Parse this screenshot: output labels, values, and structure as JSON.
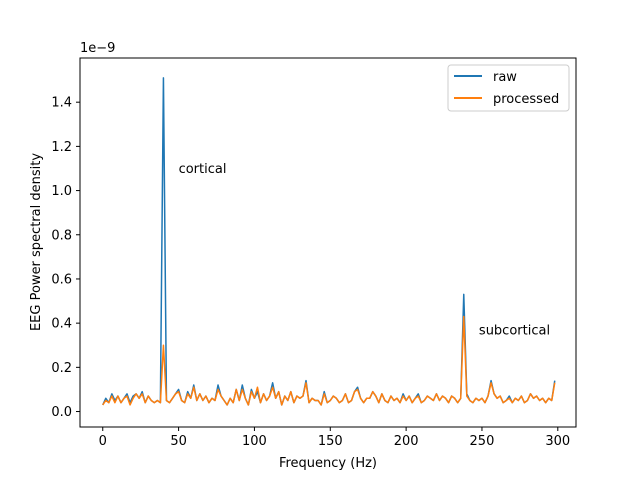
{
  "chart_data": {
    "type": "line",
    "title": "",
    "xlabel": "Frequency (Hz)",
    "ylabel": "EEG Power spectral density",
    "scale_label": "1e−9",
    "xlim": [
      -15,
      312
    ],
    "ylim": [
      -0.07,
      1.6
    ],
    "xticks": [
      0,
      50,
      100,
      150,
      200,
      250,
      300
    ],
    "yticks": [
      0.0,
      0.2,
      0.4,
      0.6,
      0.8,
      1.0,
      1.2,
      1.4
    ],
    "ytick_labels": [
      "0.0",
      "0.2",
      "0.4",
      "0.6",
      "0.8",
      "1.0",
      "1.2",
      "1.4"
    ],
    "grid": false,
    "legend_position": "top-right",
    "x": [
      0,
      2,
      4,
      6,
      8,
      10,
      12,
      14,
      16,
      18,
      20,
      22,
      24,
      26,
      28,
      30,
      32,
      34,
      36,
      38,
      40,
      42,
      44,
      46,
      48,
      50,
      52,
      54,
      56,
      58,
      60,
      62,
      64,
      66,
      68,
      70,
      72,
      74,
      76,
      78,
      80,
      82,
      84,
      86,
      88,
      90,
      92,
      94,
      96,
      98,
      100,
      102,
      104,
      106,
      108,
      110,
      112,
      114,
      116,
      118,
      120,
      122,
      124,
      126,
      128,
      130,
      132,
      134,
      136,
      138,
      140,
      142,
      144,
      146,
      148,
      150,
      152,
      154,
      156,
      158,
      160,
      162,
      164,
      166,
      168,
      170,
      172,
      174,
      176,
      178,
      180,
      182,
      184,
      186,
      188,
      190,
      192,
      194,
      196,
      198,
      200,
      202,
      204,
      206,
      208,
      210,
      212,
      214,
      216,
      218,
      220,
      222,
      224,
      226,
      228,
      230,
      232,
      234,
      236,
      238,
      240,
      242,
      244,
      246,
      248,
      250,
      252,
      254,
      256,
      258,
      260,
      262,
      264,
      266,
      268,
      270,
      272,
      274,
      276,
      278,
      280,
      282,
      284,
      286,
      288,
      290,
      292,
      294,
      296,
      298
    ],
    "series": [
      {
        "name": "raw",
        "color": "#1f77b4",
        "values": [
          0.03,
          0.06,
          0.04,
          0.08,
          0.05,
          0.07,
          0.04,
          0.06,
          0.08,
          0.04,
          0.07,
          0.08,
          0.06,
          0.09,
          0.04,
          0.07,
          0.05,
          0.04,
          0.05,
          0.04,
          1.51,
          0.05,
          0.04,
          0.06,
          0.08,
          0.1,
          0.05,
          0.04,
          0.09,
          0.06,
          0.12,
          0.05,
          0.08,
          0.05,
          0.07,
          0.04,
          0.06,
          0.05,
          0.12,
          0.07,
          0.05,
          0.03,
          0.06,
          0.04,
          0.1,
          0.05,
          0.12,
          0.06,
          0.03,
          0.1,
          0.06,
          0.09,
          0.04,
          0.08,
          0.05,
          0.07,
          0.13,
          0.06,
          0.09,
          0.03,
          0.07,
          0.05,
          0.09,
          0.04,
          0.07,
          0.06,
          0.07,
          0.14,
          0.04,
          0.06,
          0.05,
          0.05,
          0.03,
          0.09,
          0.04,
          0.05,
          0.07,
          0.06,
          0.04,
          0.05,
          0.08,
          0.04,
          0.05,
          0.09,
          0.11,
          0.06,
          0.04,
          0.06,
          0.06,
          0.09,
          0.07,
          0.04,
          0.08,
          0.05,
          0.04,
          0.07,
          0.05,
          0.06,
          0.04,
          0.08,
          0.05,
          0.07,
          0.04,
          0.06,
          0.08,
          0.04,
          0.05,
          0.07,
          0.06,
          0.05,
          0.08,
          0.05,
          0.07,
          0.06,
          0.04,
          0.07,
          0.06,
          0.04,
          0.06,
          0.53,
          0.08,
          0.05,
          0.04,
          0.06,
          0.05,
          0.06,
          0.04,
          0.07,
          0.14,
          0.08,
          0.06,
          0.07,
          0.04,
          0.05,
          0.07,
          0.04,
          0.06,
          0.05,
          0.07,
          0.04,
          0.05,
          0.08,
          0.06,
          0.07,
          0.05,
          0.06,
          0.04,
          0.06,
          0.05,
          0.14
        ]
      },
      {
        "name": "processed",
        "color": "#ff7f0e",
        "values": [
          0.03,
          0.05,
          0.04,
          0.07,
          0.04,
          0.07,
          0.04,
          0.06,
          0.07,
          0.03,
          0.06,
          0.08,
          0.06,
          0.08,
          0.04,
          0.07,
          0.05,
          0.04,
          0.05,
          0.04,
          0.3,
          0.05,
          0.04,
          0.06,
          0.08,
          0.09,
          0.05,
          0.04,
          0.08,
          0.06,
          0.11,
          0.05,
          0.08,
          0.05,
          0.07,
          0.04,
          0.06,
          0.05,
          0.1,
          0.07,
          0.05,
          0.03,
          0.06,
          0.04,
          0.1,
          0.05,
          0.1,
          0.06,
          0.03,
          0.09,
          0.06,
          0.11,
          0.04,
          0.08,
          0.05,
          0.07,
          0.11,
          0.06,
          0.09,
          0.03,
          0.07,
          0.05,
          0.09,
          0.04,
          0.07,
          0.06,
          0.07,
          0.13,
          0.04,
          0.06,
          0.05,
          0.05,
          0.03,
          0.08,
          0.04,
          0.05,
          0.07,
          0.06,
          0.04,
          0.05,
          0.08,
          0.04,
          0.05,
          0.09,
          0.1,
          0.06,
          0.04,
          0.06,
          0.06,
          0.09,
          0.07,
          0.04,
          0.08,
          0.05,
          0.04,
          0.07,
          0.05,
          0.06,
          0.04,
          0.07,
          0.05,
          0.07,
          0.04,
          0.06,
          0.07,
          0.04,
          0.05,
          0.07,
          0.06,
          0.05,
          0.08,
          0.05,
          0.07,
          0.06,
          0.04,
          0.07,
          0.06,
          0.04,
          0.06,
          0.43,
          0.07,
          0.05,
          0.04,
          0.06,
          0.05,
          0.06,
          0.04,
          0.07,
          0.13,
          0.08,
          0.06,
          0.07,
          0.04,
          0.05,
          0.06,
          0.04,
          0.06,
          0.05,
          0.07,
          0.04,
          0.05,
          0.08,
          0.06,
          0.07,
          0.05,
          0.06,
          0.04,
          0.06,
          0.05,
          0.13
        ]
      }
    ],
    "annotations": [
      {
        "text": "cortical",
        "x": 50,
        "y": 1.1
      },
      {
        "text": "subcortical",
        "x": 248,
        "y": 0.37
      }
    ]
  }
}
